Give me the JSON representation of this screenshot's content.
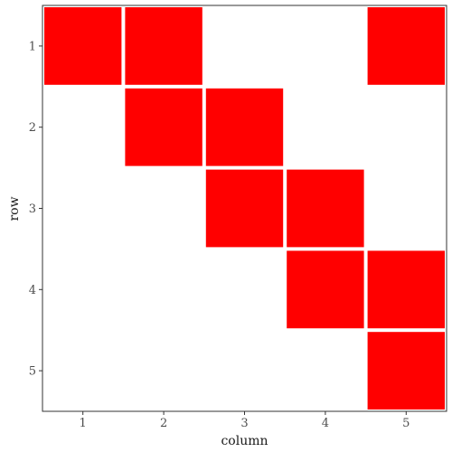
{
  "chart_data": {
    "type": "heatmap",
    "xlabel": "column",
    "ylabel": "row",
    "columns": [
      1,
      2,
      3,
      4,
      5
    ],
    "rows": [
      1,
      2,
      3,
      4,
      5
    ],
    "x_ticks": [
      "1",
      "2",
      "3",
      "4",
      "5"
    ],
    "y_ticks": [
      "1",
      "2",
      "3",
      "4",
      "5"
    ],
    "y_reversed": true,
    "grid": false,
    "fill_color": "#ff0000",
    "cells": [
      {
        "row": 1,
        "column": 1
      },
      {
        "row": 1,
        "column": 2
      },
      {
        "row": 1,
        "column": 5
      },
      {
        "row": 2,
        "column": 2
      },
      {
        "row": 2,
        "column": 3
      },
      {
        "row": 3,
        "column": 3
      },
      {
        "row": 3,
        "column": 4
      },
      {
        "row": 4,
        "column": 4
      },
      {
        "row": 4,
        "column": 5
      },
      {
        "row": 5,
        "column": 5
      }
    ]
  }
}
